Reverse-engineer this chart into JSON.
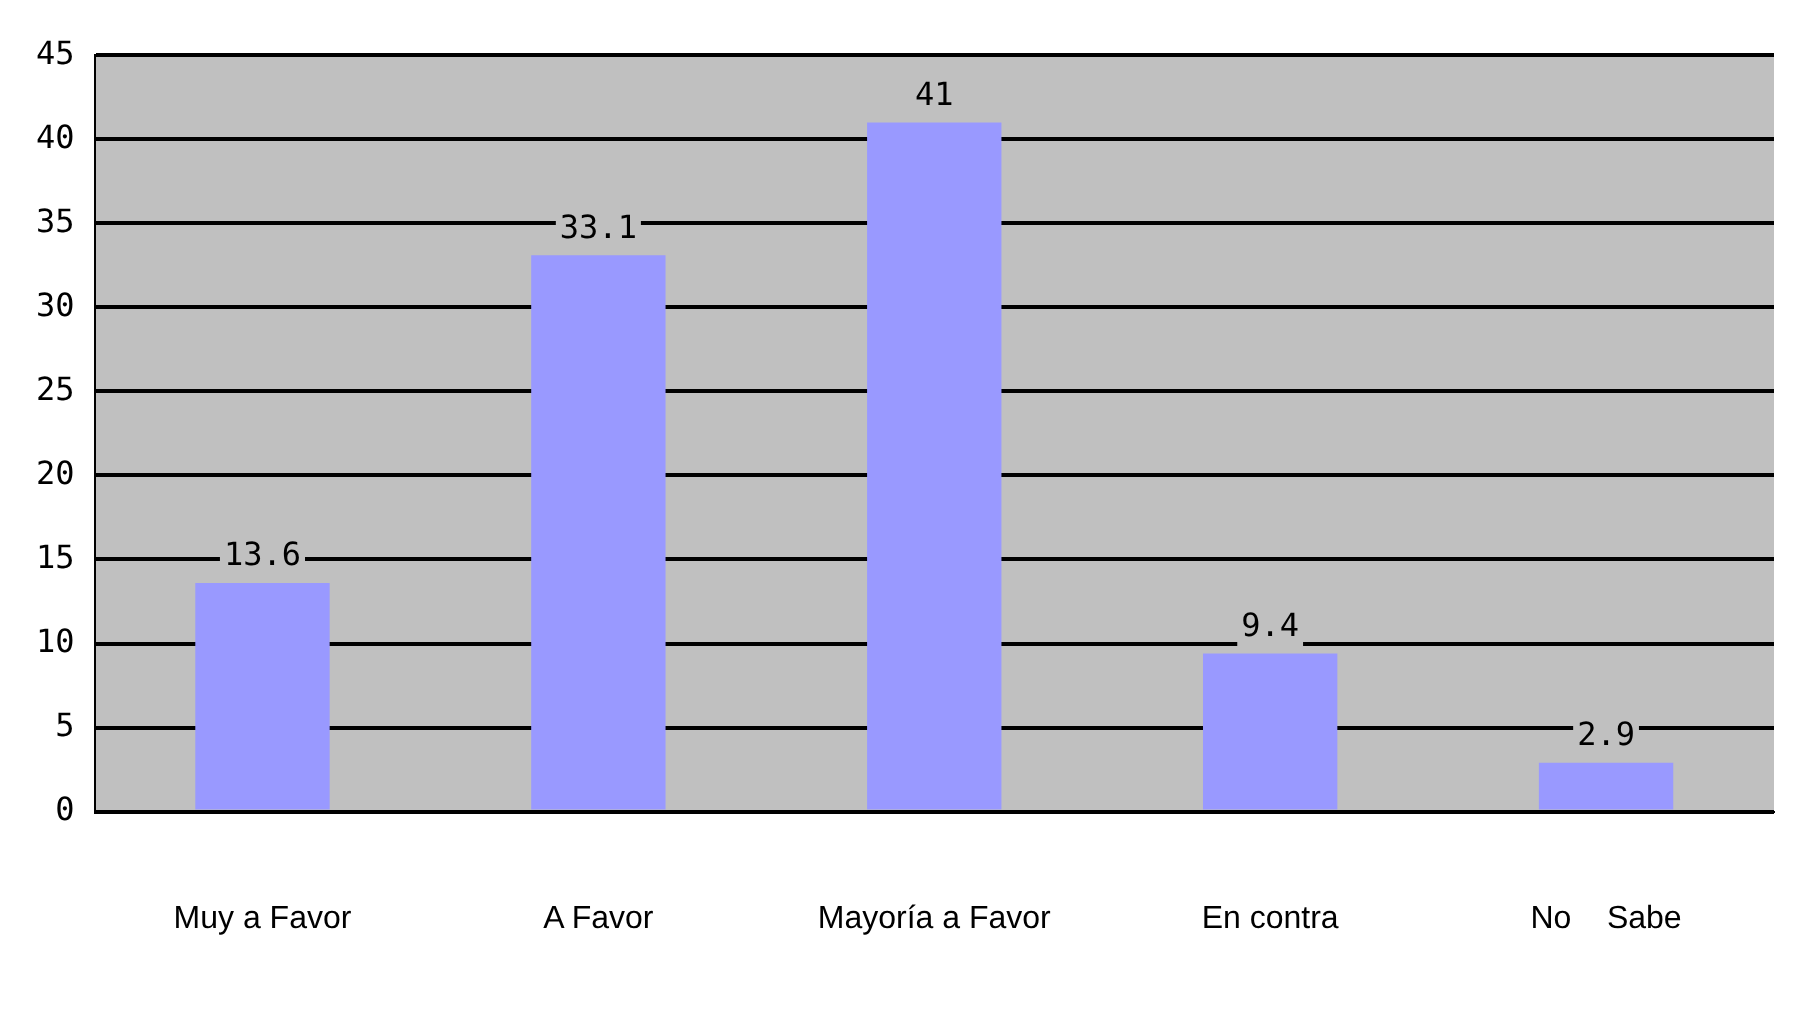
{
  "chart_data": {
    "type": "bar",
    "categories": [
      "Muy a Favor",
      "A Favor",
      "Mayoría a Favor",
      "En contra",
      "No    Sabe"
    ],
    "values": [
      13.6,
      33.1,
      41,
      9.4,
      2.9
    ],
    "color": "#9999ff",
    "ylim": [
      0,
      45
    ],
    "yticks": [
      0,
      5,
      10,
      15,
      20,
      25,
      30,
      35,
      40,
      45
    ],
    "grid": "y",
    "data_labels": true,
    "legend": false
  }
}
